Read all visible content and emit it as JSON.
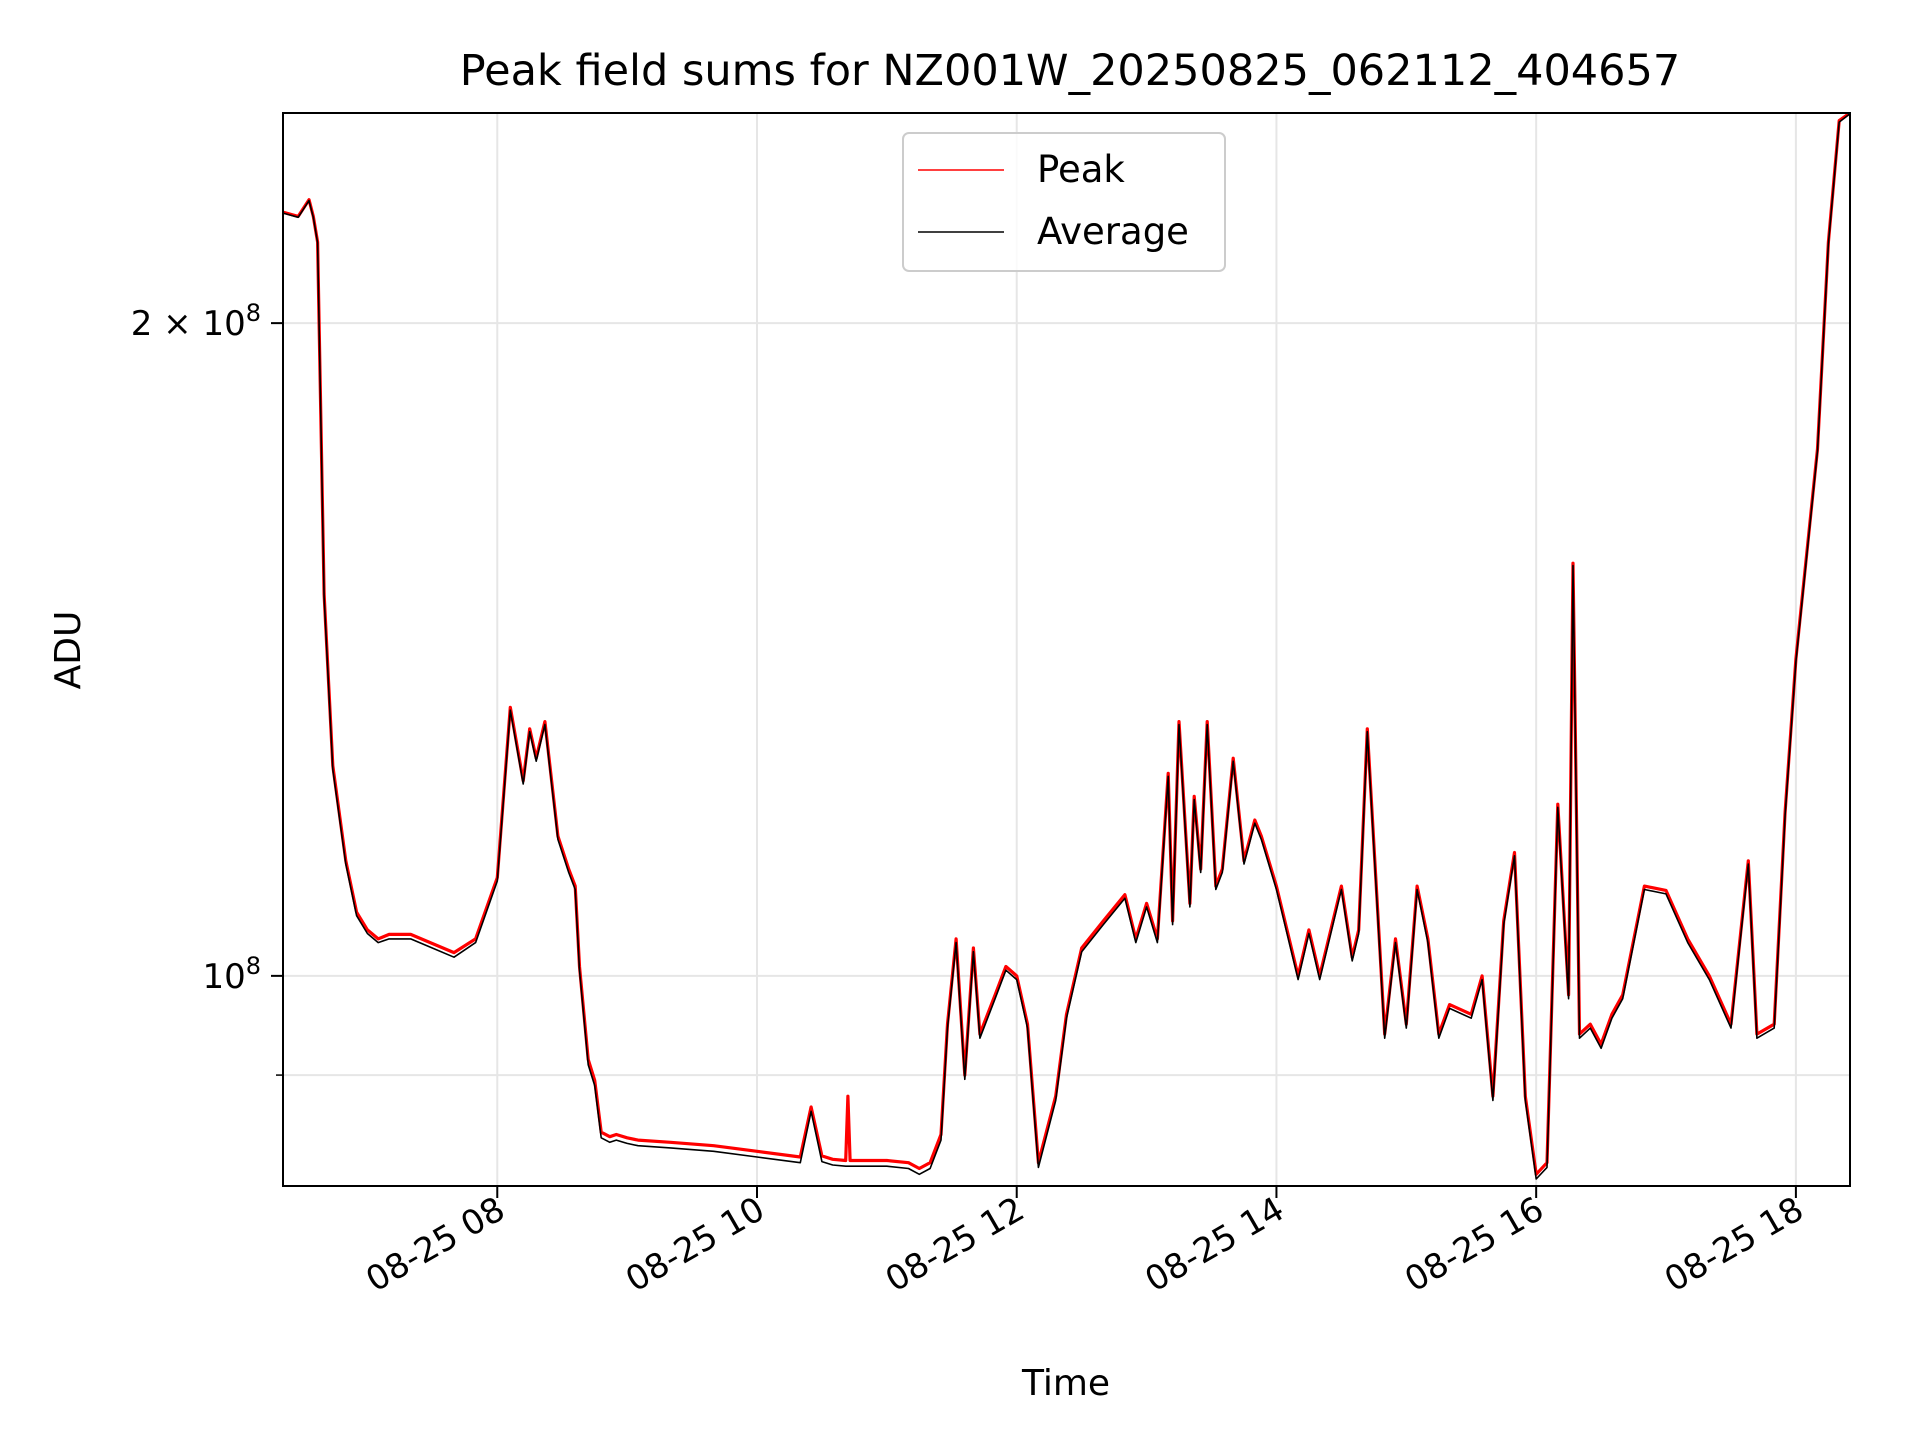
{
  "chart_data": {
    "type": "line",
    "title": "Peak field sums for NZ001W_20250825_062112_404657",
    "xlabel": "Time",
    "ylabel": "ADU",
    "yscale": "log",
    "grid": true,
    "legend_position": "upper center",
    "xlim": [
      "2025-08-25 06:21",
      "2025-08-25 18:25"
    ],
    "ylim": [
      80000000,
      250000000
    ],
    "x_ticks": [
      {
        "value": "2025-08-25 08:00",
        "label": "08-25 08"
      },
      {
        "value": "2025-08-25 10:00",
        "label": "08-25 10"
      },
      {
        "value": "2025-08-25 12:00",
        "label": "08-25 12"
      },
      {
        "value": "2025-08-25 14:00",
        "label": "08-25 14"
      },
      {
        "value": "2025-08-25 16:00",
        "label": "08-25 16"
      },
      {
        "value": "2025-08-25 18:00",
        "label": "08-25 18"
      }
    ],
    "y_ticks": [
      {
        "value": 100000000,
        "label_base": "10",
        "label_exp": "8",
        "label_coef": ""
      },
      {
        "value": 200000000,
        "label_base": "10",
        "label_exp": "8",
        "label_coef": "2 × "
      }
    ],
    "y_minor_ticks": [
      90000000
    ],
    "series": [
      {
        "name": "Peak",
        "color": "#ff0000",
        "x": [
          "2025-08-25 06:21",
          "2025-08-25 06:28",
          "2025-08-25 06:33",
          "2025-08-25 06:35",
          "2025-08-25 06:37",
          "2025-08-25 06:40",
          "2025-08-25 06:44",
          "2025-08-25 06:50",
          "2025-08-25 06:55",
          "2025-08-25 07:00",
          "2025-08-25 07:05",
          "2025-08-25 07:10",
          "2025-08-25 07:20",
          "2025-08-25 07:30",
          "2025-08-25 07:40",
          "2025-08-25 07:50",
          "2025-08-25 08:00",
          "2025-08-25 08:06",
          "2025-08-25 08:12",
          "2025-08-25 08:15",
          "2025-08-25 08:18",
          "2025-08-25 08:22",
          "2025-08-25 08:28",
          "2025-08-25 08:33",
          "2025-08-25 08:36",
          "2025-08-25 08:38",
          "2025-08-25 08:42",
          "2025-08-25 08:45",
          "2025-08-25 08:48",
          "2025-08-25 08:52",
          "2025-08-25 08:55",
          "2025-08-25 09:00",
          "2025-08-25 09:05",
          "2025-08-25 09:20",
          "2025-08-25 09:40",
          "2025-08-25 10:00",
          "2025-08-25 10:20",
          "2025-08-25 10:25",
          "2025-08-25 10:30",
          "2025-08-25 10:35",
          "2025-08-25 10:41",
          "2025-08-25 10:42",
          "2025-08-25 10:43",
          "2025-08-25 11:00",
          "2025-08-25 11:10",
          "2025-08-25 11:15",
          "2025-08-25 11:20",
          "2025-08-25 11:25",
          "2025-08-25 11:28",
          "2025-08-25 11:32",
          "2025-08-25 11:36",
          "2025-08-25 11:40",
          "2025-08-25 11:43",
          "2025-08-25 11:50",
          "2025-08-25 11:55",
          "2025-08-25 12:00",
          "2025-08-25 12:05",
          "2025-08-25 12:10",
          "2025-08-25 12:18",
          "2025-08-25 12:23",
          "2025-08-25 12:30",
          "2025-08-25 12:40",
          "2025-08-25 12:50",
          "2025-08-25 12:55",
          "2025-08-25 13:00",
          "2025-08-25 13:05",
          "2025-08-25 13:10",
          "2025-08-25 13:12",
          "2025-08-25 13:15",
          "2025-08-25 13:20",
          "2025-08-25 13:22",
          "2025-08-25 13:25",
          "2025-08-25 13:28",
          "2025-08-25 13:32",
          "2025-08-25 13:35",
          "2025-08-25 13:40",
          "2025-08-25 13:45",
          "2025-08-25 13:50",
          "2025-08-25 13:53",
          "2025-08-25 14:00",
          "2025-08-25 14:10",
          "2025-08-25 14:15",
          "2025-08-25 14:20",
          "2025-08-25 14:30",
          "2025-08-25 14:35",
          "2025-08-25 14:38",
          "2025-08-25 14:42",
          "2025-08-25 14:50",
          "2025-08-25 14:55",
          "2025-08-25 15:00",
          "2025-08-25 15:05",
          "2025-08-25 15:10",
          "2025-08-25 15:15",
          "2025-08-25 15:20",
          "2025-08-25 15:30",
          "2025-08-25 15:35",
          "2025-08-25 15:40",
          "2025-08-25 15:45",
          "2025-08-25 15:50",
          "2025-08-25 15:55",
          "2025-08-25 16:00",
          "2025-08-25 16:05",
          "2025-08-25 16:10",
          "2025-08-25 16:15",
          "2025-08-25 16:17",
          "2025-08-25 16:20",
          "2025-08-25 16:25",
          "2025-08-25 16:30",
          "2025-08-25 16:35",
          "2025-08-25 16:40",
          "2025-08-25 16:50",
          "2025-08-25 17:00",
          "2025-08-25 17:10",
          "2025-08-25 17:20",
          "2025-08-25 17:30",
          "2025-08-25 17:38",
          "2025-08-25 17:42",
          "2025-08-25 17:50",
          "2025-08-25 17:55",
          "2025-08-25 18:00",
          "2025-08-25 18:10",
          "2025-08-25 18:15",
          "2025-08-25 18:20",
          "2025-08-25 18:25"
        ],
        "values": [
          225000000,
          224000000,
          228000000,
          224000000,
          218000000,
          150000000,
          125000000,
          113000000,
          107000000,
          105000000,
          104000000,
          104500000,
          104500000,
          103500000,
          102500000,
          104000000,
          111000000,
          133000000,
          123000000,
          130000000,
          126000000,
          131000000,
          116000000,
          112000000,
          110000000,
          101000000,
          91500000,
          89500000,
          84700000,
          84300000,
          84500000,
          84200000,
          84000000,
          83800000,
          83500000,
          83000000,
          82500000,
          87000000,
          82600000,
          82300000,
          82200000,
          88000000,
          82200000,
          82200000,
          82000000,
          81500000,
          82000000,
          84500000,
          95000000,
          104000000,
          90000000,
          103000000,
          94000000,
          98000000,
          101000000,
          100000000,
          95000000,
          82000000,
          88000000,
          96000000,
          103000000,
          106000000,
          109000000,
          104000000,
          108000000,
          104000000,
          124000000,
          106000000,
          131000000,
          108000000,
          121000000,
          112000000,
          131000000,
          110000000,
          112000000,
          126000000,
          113000000,
          118000000,
          116000000,
          110000000,
          100000000,
          105000000,
          100000000,
          110000000,
          102000000,
          105000000,
          130000000,
          94000000,
          104000000,
          95000000,
          110000000,
          104000000,
          94000000,
          97000000,
          96000000,
          100000000,
          88000000,
          106000000,
          114000000,
          88000000,
          81000000,
          82000000,
          120000000,
          98000000,
          155000000,
          94000000,
          95000000,
          93000000,
          96000000,
          98000000,
          110000000,
          109500000,
          104000000,
          100000000,
          95000000,
          113000000,
          94000000,
          95000000,
          119000000,
          140000000,
          175000000,
          218000000,
          248000000,
          250000000
        ]
      },
      {
        "name": "Average",
        "color": "#000000",
        "x": [
          "2025-08-25 06:21",
          "2025-08-25 06:28",
          "2025-08-25 06:33",
          "2025-08-25 06:35",
          "2025-08-25 06:37",
          "2025-08-25 06:40",
          "2025-08-25 06:44",
          "2025-08-25 06:50",
          "2025-08-25 06:55",
          "2025-08-25 07:00",
          "2025-08-25 07:05",
          "2025-08-25 07:10",
          "2025-08-25 07:20",
          "2025-08-25 07:30",
          "2025-08-25 07:40",
          "2025-08-25 07:50",
          "2025-08-25 08:00",
          "2025-08-25 08:06",
          "2025-08-25 08:12",
          "2025-08-25 08:15",
          "2025-08-25 08:18",
          "2025-08-25 08:22",
          "2025-08-25 08:28",
          "2025-08-25 08:33",
          "2025-08-25 08:36",
          "2025-08-25 08:38",
          "2025-08-25 08:42",
          "2025-08-25 08:45",
          "2025-08-25 08:48",
          "2025-08-25 08:52",
          "2025-08-25 08:55",
          "2025-08-25 09:00",
          "2025-08-25 09:05",
          "2025-08-25 09:20",
          "2025-08-25 09:40",
          "2025-08-25 10:00",
          "2025-08-25 10:20",
          "2025-08-25 10:25",
          "2025-08-25 10:30",
          "2025-08-25 10:35",
          "2025-08-25 10:41",
          "2025-08-25 10:42",
          "2025-08-25 10:43",
          "2025-08-25 11:00",
          "2025-08-25 11:10",
          "2025-08-25 11:15",
          "2025-08-25 11:20",
          "2025-08-25 11:25",
          "2025-08-25 11:28",
          "2025-08-25 11:32",
          "2025-08-25 11:36",
          "2025-08-25 11:40",
          "2025-08-25 11:43",
          "2025-08-25 11:50",
          "2025-08-25 11:55",
          "2025-08-25 12:00",
          "2025-08-25 12:05",
          "2025-08-25 12:10",
          "2025-08-25 12:18",
          "2025-08-25 12:23",
          "2025-08-25 12:30",
          "2025-08-25 12:40",
          "2025-08-25 12:50",
          "2025-08-25 12:55",
          "2025-08-25 13:00",
          "2025-08-25 13:05",
          "2025-08-25 13:10",
          "2025-08-25 13:12",
          "2025-08-25 13:15",
          "2025-08-25 13:20",
          "2025-08-25 13:22",
          "2025-08-25 13:25",
          "2025-08-25 13:28",
          "2025-08-25 13:32",
          "2025-08-25 13:35",
          "2025-08-25 13:40",
          "2025-08-25 13:45",
          "2025-08-25 13:50",
          "2025-08-25 13:53",
          "2025-08-25 14:00",
          "2025-08-25 14:10",
          "2025-08-25 14:15",
          "2025-08-25 14:20",
          "2025-08-25 14:30",
          "2025-08-25 14:35",
          "2025-08-25 14:38",
          "2025-08-25 14:42",
          "2025-08-25 14:50",
          "2025-08-25 14:55",
          "2025-08-25 15:00",
          "2025-08-25 15:05",
          "2025-08-25 15:10",
          "2025-08-25 15:15",
          "2025-08-25 15:20",
          "2025-08-25 15:30",
          "2025-08-25 15:35",
          "2025-08-25 15:40",
          "2025-08-25 15:45",
          "2025-08-25 15:50",
          "2025-08-25 15:55",
          "2025-08-25 16:00",
          "2025-08-25 16:05",
          "2025-08-25 16:10",
          "2025-08-25 16:15",
          "2025-08-25 16:17",
          "2025-08-25 16:20",
          "2025-08-25 16:25",
          "2025-08-25 16:30",
          "2025-08-25 16:35",
          "2025-08-25 16:40",
          "2025-08-25 16:50",
          "2025-08-25 17:00",
          "2025-08-25 17:10",
          "2025-08-25 17:20",
          "2025-08-25 17:30",
          "2025-08-25 17:38",
          "2025-08-25 17:42",
          "2025-08-25 17:50",
          "2025-08-25 17:55",
          "2025-08-25 18:00",
          "2025-08-25 18:10",
          "2025-08-25 18:15",
          "2025-08-25 18:20",
          "2025-08-25 18:25"
        ],
        "values": [
          224800000,
          223800000,
          227800000,
          223800000,
          217800000,
          149500000,
          124500000,
          112600000,
          106600000,
          104600000,
          103600000,
          104000000,
          104000000,
          103000000,
          102000000,
          103600000,
          110600000,
          132600000,
          122600000,
          129600000,
          125600000,
          130600000,
          115600000,
          111600000,
          109600000,
          100600000,
          91000000,
          89000000,
          84200000,
          83800000,
          84000000,
          83700000,
          83500000,
          83300000,
          83000000,
          82500000,
          82000000,
          86600000,
          82100000,
          81800000,
          81700000,
          81700000,
          81700000,
          81700000,
          81500000,
          81000000,
          81500000,
          84000000,
          94600000,
          103600000,
          89600000,
          102600000,
          93600000,
          97600000,
          100600000,
          99600000,
          94600000,
          81600000,
          87600000,
          95600000,
          102600000,
          105600000,
          108600000,
          103600000,
          107600000,
          103600000,
          123600000,
          105600000,
          130600000,
          107600000,
          120600000,
          111600000,
          130600000,
          109600000,
          111600000,
          125600000,
          112600000,
          117600000,
          115600000,
          109600000,
          99600000,
          104600000,
          99600000,
          109600000,
          101600000,
          104600000,
          129600000,
          93600000,
          103600000,
          94600000,
          109600000,
          103600000,
          93600000,
          96600000,
          95600000,
          99600000,
          87600000,
          105600000,
          113600000,
          87600000,
          80600000,
          81600000,
          119600000,
          97600000,
          154600000,
          93600000,
          94600000,
          92600000,
          95600000,
          97600000,
          109600000,
          109100000,
          103600000,
          99600000,
          94600000,
          112600000,
          93600000,
          94600000,
          118600000,
          139600000,
          174600000,
          217600000,
          247600000,
          249800000
        ]
      }
    ]
  }
}
